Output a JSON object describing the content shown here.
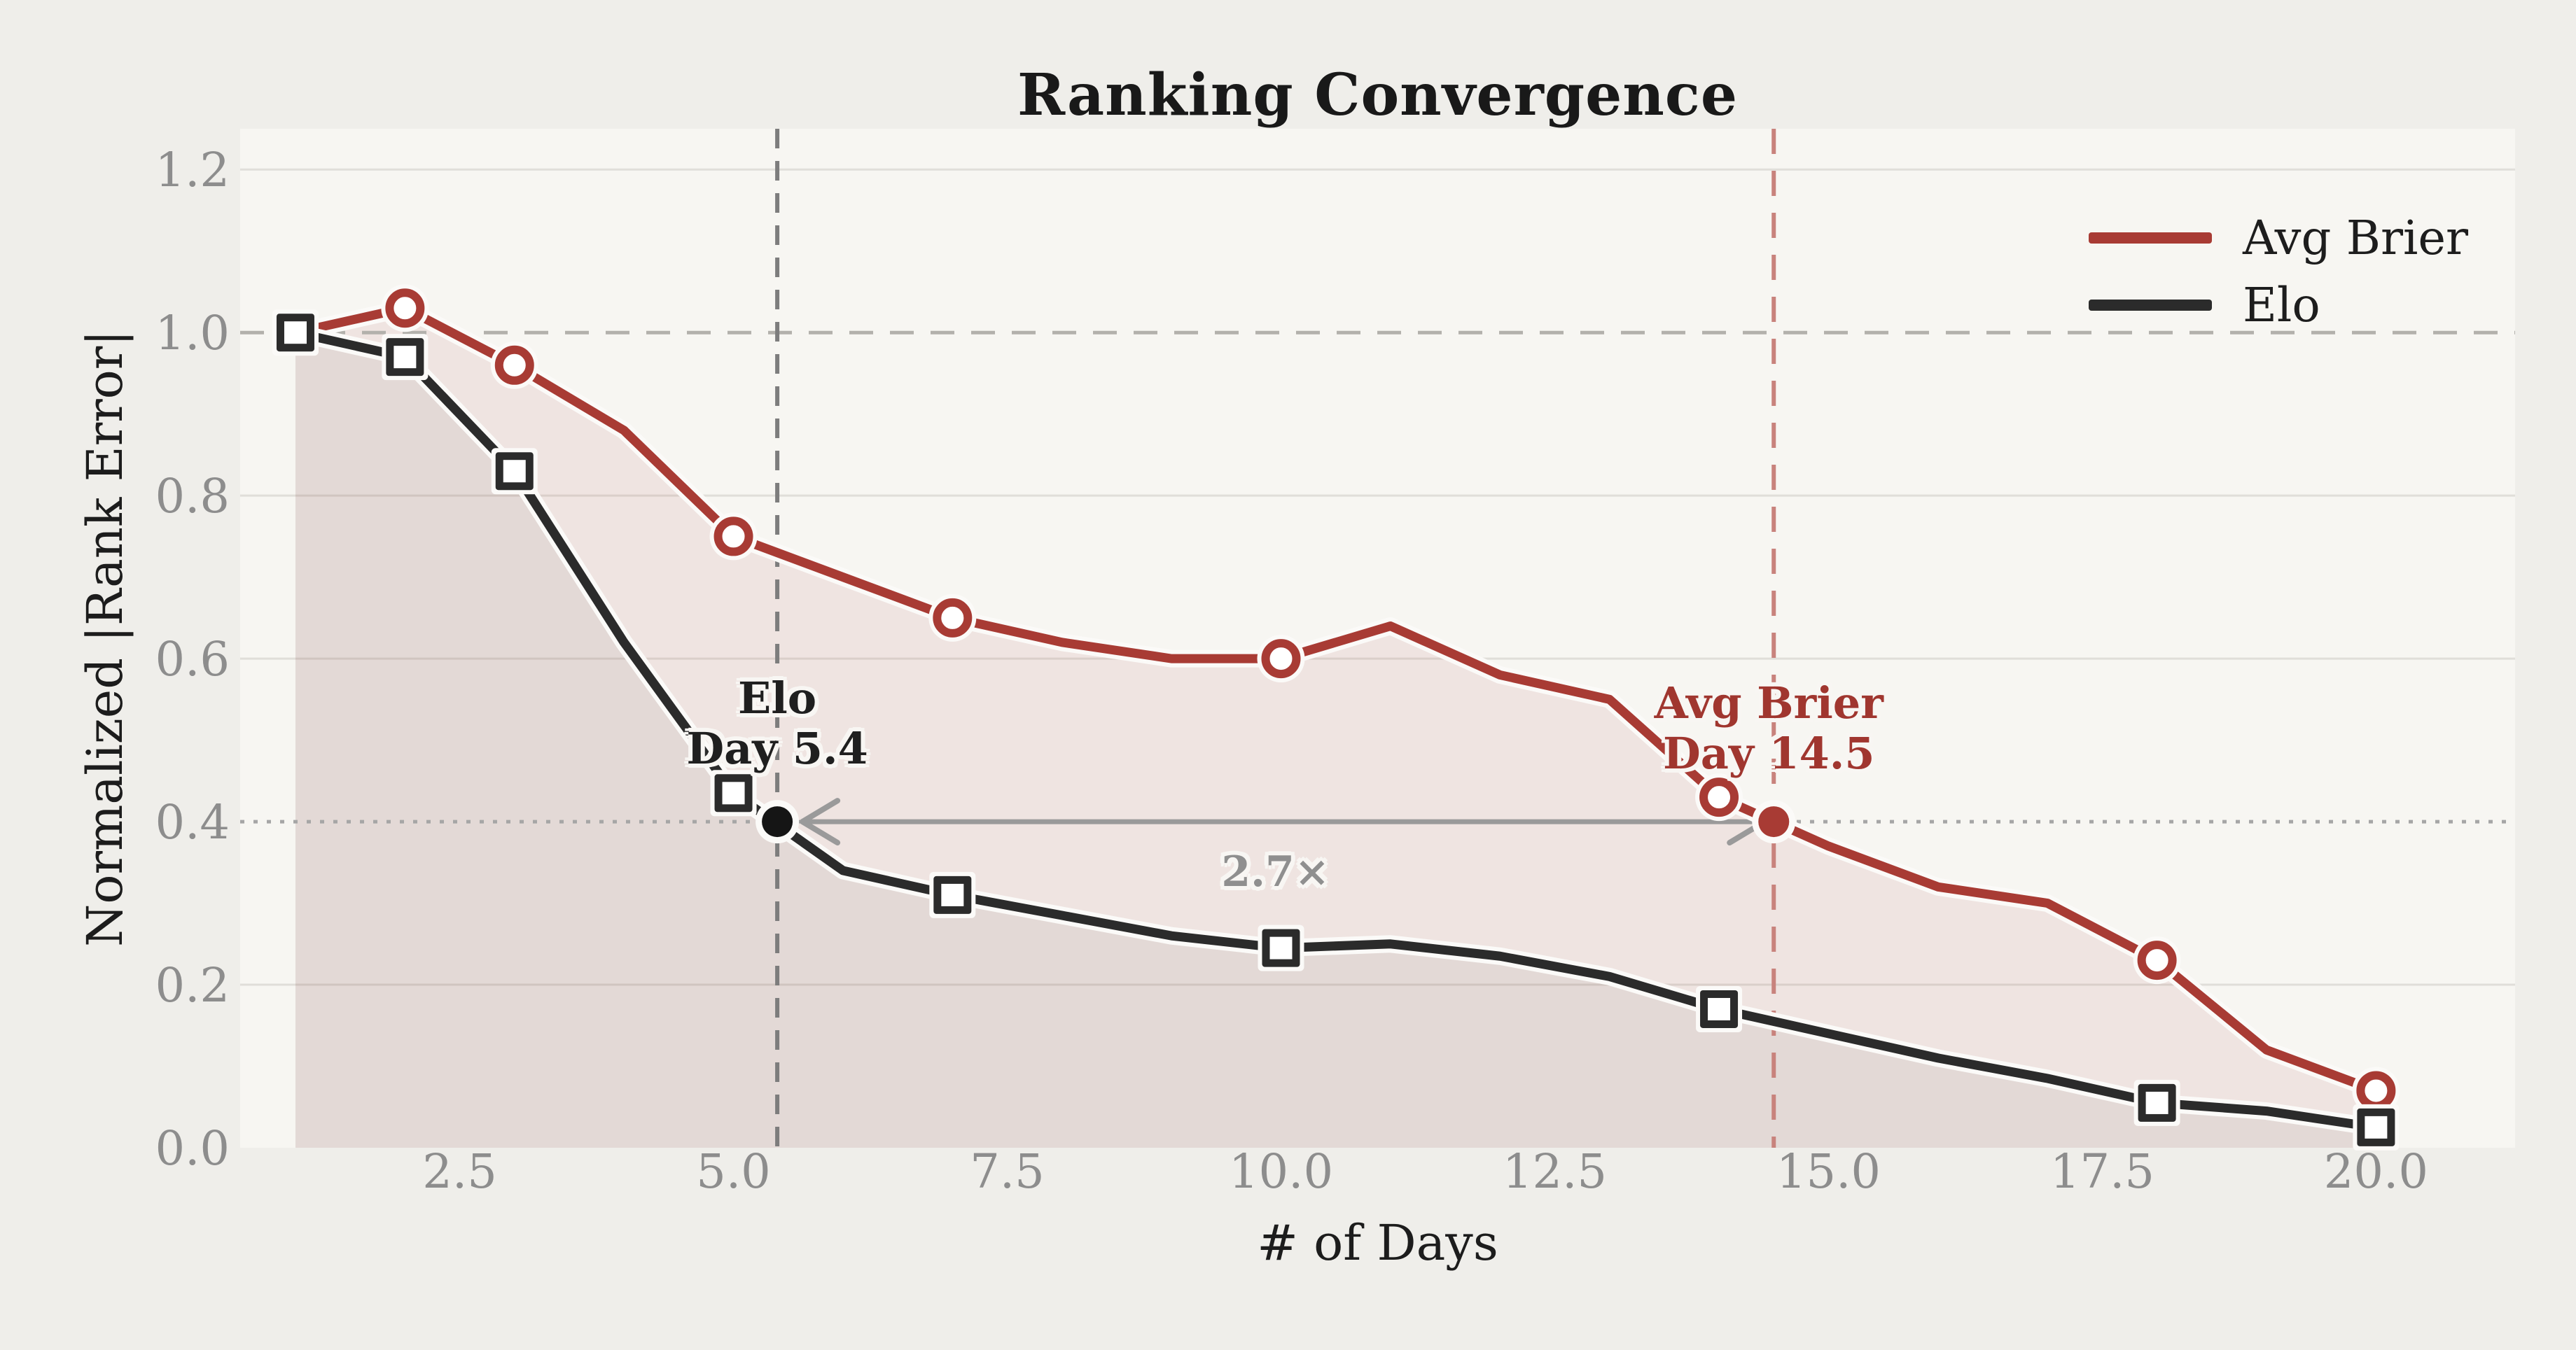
{
  "title": "Ranking Convergence",
  "axes": {
    "xlabel": "# of Days",
    "ylabel": "Normalized |Rank Error|",
    "xlim": [
      0.495,
      21.27
    ],
    "ylim": [
      0,
      1.25
    ],
    "x_ticks": [
      2.5,
      5.0,
      7.5,
      10.0,
      12.5,
      15.0,
      17.5,
      20.0
    ],
    "x_tick_labels": [
      "2.5",
      "5.0",
      "7.5",
      "10.0",
      "12.5",
      "15.0",
      "17.5",
      "20.0"
    ],
    "y_ticks": [
      0.0,
      0.2,
      0.4,
      0.6,
      0.8,
      1.0,
      1.2
    ],
    "y_tick_labels": [
      "0.0",
      "0.2",
      "0.4",
      "0.6",
      "0.8",
      "1.0",
      "1.2"
    ],
    "grid_y_values": [
      0.2,
      0.6,
      0.8,
      1.2
    ],
    "dashed_hline_y": 1.0,
    "dotted_hline_y": 0.4
  },
  "legend": {
    "items": [
      {
        "label": "Avg Brier",
        "color": "#a83b34"
      },
      {
        "label": "Elo",
        "color": "#2b2b2b"
      }
    ]
  },
  "annotations": {
    "elo": {
      "line1": "Elo",
      "line2": "Day 5.4",
      "day": 5.4,
      "value": 0.4
    },
    "brier": {
      "line1": "Avg Brier",
      "line2": "Day 14.5",
      "day": 14.5,
      "value": 0.4
    },
    "speedup": {
      "text": "2.7×"
    }
  },
  "chart_data": {
    "type": "line",
    "title": "Ranking Convergence",
    "xlabel": "# of Days",
    "ylabel": "Normalized |Rank Error|",
    "xlim": [
      0.495,
      21.27
    ],
    "ylim": [
      0,
      1.25
    ],
    "grid": "horizontal-only",
    "legend_position": "upper right",
    "x": [
      1,
      2,
      3,
      4,
      5,
      6,
      7,
      8,
      9,
      10,
      11,
      12,
      13,
      14,
      15,
      16,
      17,
      18,
      19,
      20
    ],
    "series": [
      {
        "name": "Avg Brier",
        "color": "#a83b34",
        "marker": "circle",
        "marker_days": [
          2,
          3,
          5,
          7,
          10,
          14,
          18,
          20
        ],
        "values": [
          1.0,
          1.03,
          0.96,
          0.88,
          0.75,
          0.7,
          0.65,
          0.62,
          0.6,
          0.6,
          0.64,
          0.58,
          0.55,
          0.43,
          0.37,
          0.32,
          0.3,
          0.23,
          0.12,
          0.07
        ]
      },
      {
        "name": "Elo",
        "color": "#2b2b2b",
        "marker": "square",
        "marker_days": [
          1,
          2,
          3,
          5,
          7,
          10,
          14,
          18,
          20
        ],
        "values": [
          1.0,
          0.97,
          0.83,
          0.62,
          0.435,
          0.34,
          0.31,
          0.285,
          0.26,
          0.245,
          0.25,
          0.235,
          0.21,
          0.17,
          0.14,
          0.11,
          0.085,
          0.055,
          0.045,
          0.025
        ]
      }
    ],
    "convergence_points": [
      {
        "name": "Elo",
        "day": 5.4,
        "value": 0.4,
        "dot_color": "#151515"
      },
      {
        "name": "Avg Brier",
        "day": 14.5,
        "value": 0.4,
        "dot_color": "#a83b34"
      }
    ],
    "speedup_label": "2.7×",
    "reference_lines": {
      "dashed_horizontal_at": 1.0,
      "dotted_horizontal_at": 0.4,
      "gray_dashed_vertical_at": 5.4,
      "red_dashed_vertical_at": 14.5
    }
  },
  "colors": {
    "fig_bg": "#efeeea",
    "axes_bg": "#f7f6f2",
    "grid": "#e0ded9",
    "red": "#a83b34",
    "black": "#2b2b2b",
    "halo": "#fbfaf8",
    "tick": "#8d8d8d",
    "gray_dash_vline": "#7d7d7d",
    "red_dash_vline": "#c8837d",
    "dotted_hline": "#a6a6a6",
    "dashed_hline": "#b3b1ac",
    "arrow": "#9a9a9a",
    "red_fill": "rgba(168,59,52,0.09)",
    "black_fill": "rgba(45,45,45,0.055)"
  }
}
